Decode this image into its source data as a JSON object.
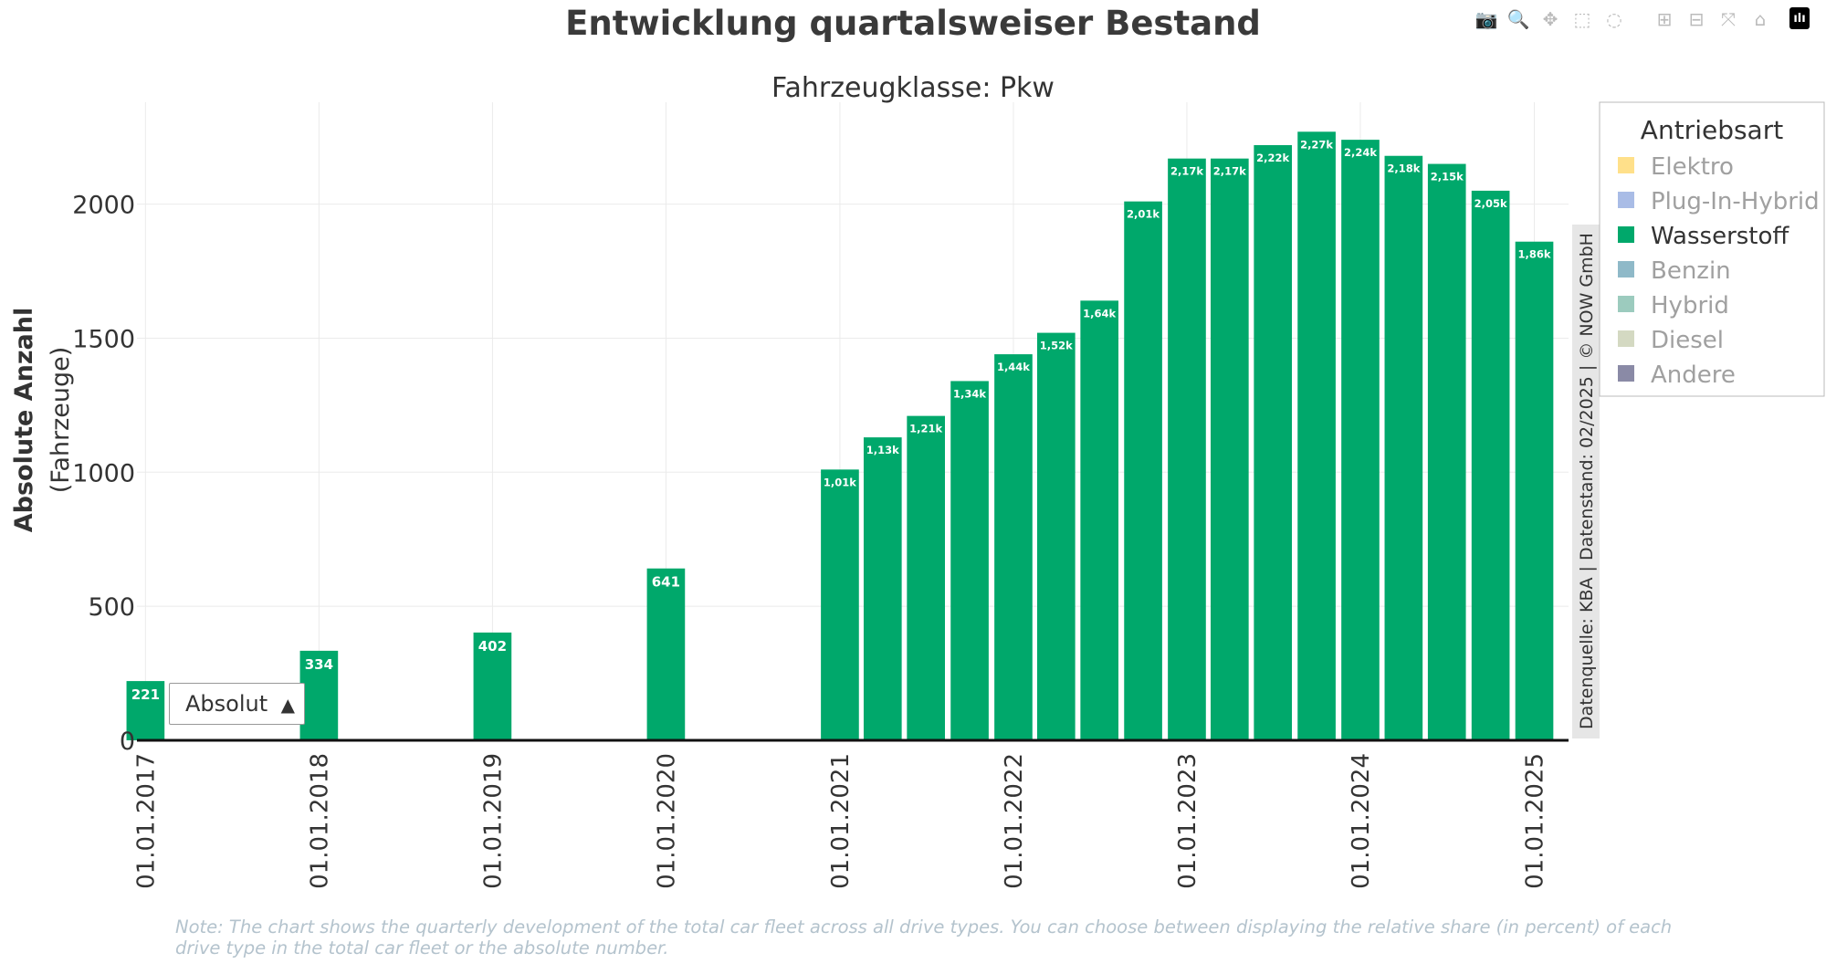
{
  "page": {
    "title": "Entwicklung quartalsweiser Bestand",
    "subtitle": "Fahrzeugklasse: Pkw",
    "source_note": "Datenquelle: KBA | Datenstand: 02/2025 | © NOW GmbH",
    "footnote": "Note: The chart shows the quarterly development of the total car fleet across all drive types. You can choose between displaying the relative share (in percent) of each drive type in the total car fleet or the absolute number."
  },
  "dropdown": {
    "selected": "Absolut",
    "arrow": "▲"
  },
  "toolbar": [
    {
      "name": "camera-icon",
      "glyph": "📷"
    },
    {
      "name": "zoom-icon",
      "glyph": "🔍"
    },
    {
      "name": "pan-icon",
      "glyph": "✥"
    },
    {
      "name": "box-select-icon",
      "glyph": "⬚"
    },
    {
      "name": "lasso-select-icon",
      "glyph": "◌"
    },
    {
      "name": "zoom-in-icon",
      "glyph": "⊞"
    },
    {
      "name": "zoom-out-icon",
      "glyph": "⊟"
    },
    {
      "name": "autoscale-icon",
      "glyph": "⤧"
    },
    {
      "name": "reset-axes-icon",
      "glyph": "⌂"
    },
    {
      "name": "plotly-logo-icon",
      "glyph": "ılı"
    }
  ],
  "colors": {
    "bar": "#00a86b",
    "axis": "#111111",
    "grid": "#ebebeb",
    "text": "#444444",
    "legend_inactive_text": "#a0a0a0",
    "legend_active_text": "#333333"
  },
  "chart_data": {
    "type": "bar",
    "title": "Entwicklung quartalsweiser Bestand",
    "subtitle": "Fahrzeugklasse: Pkw",
    "ylabel": "Absolute Anzahl",
    "ylabel_unit": "(Fahrzeuge)",
    "xlabel": "",
    "ylim": [
      0,
      2380
    ],
    "yticks": [
      0,
      500,
      1000,
      1500,
      2000
    ],
    "grid": true,
    "x_range": [
      "2016-12-14",
      "2025-03-14"
    ],
    "xtick_dates": [
      "2017-01-01",
      "2018-01-01",
      "2019-01-01",
      "2020-01-01",
      "2021-01-01",
      "2022-01-01",
      "2023-01-01",
      "2024-01-01",
      "2025-01-01"
    ],
    "xtick_labels": [
      "01.01.2017",
      "01.01.2018",
      "01.01.2019",
      "01.01.2020",
      "01.01.2021",
      "01.01.2022",
      "01.01.2023",
      "01.01.2024",
      "01.01.2025"
    ],
    "legend_title": "Antriebsart",
    "legend_position": "top-right",
    "legend": [
      {
        "name": "Elektro",
        "color": "#ffe08a",
        "active": false
      },
      {
        "name": "Plug-In-Hybrid",
        "color": "#a9bce6",
        "active": false
      },
      {
        "name": "Wasserstoff",
        "color": "#00a86b",
        "active": true
      },
      {
        "name": "Benzin",
        "color": "#8fb9c8",
        "active": false
      },
      {
        "name": "Hybrid",
        "color": "#9ccbbe",
        "active": false
      },
      {
        "name": "Diesel",
        "color": "#d4d9c2",
        "active": false
      },
      {
        "name": "Andere",
        "color": "#8a8aa6",
        "active": false
      }
    ],
    "series": [
      {
        "name": "Wasserstoff",
        "x": [
          "2017-01-01",
          "2018-01-01",
          "2019-01-01",
          "2020-01-01",
          "2021-01-01",
          "2021-04-01",
          "2021-07-01",
          "2021-10-01",
          "2022-01-01",
          "2022-04-01",
          "2022-07-01",
          "2022-10-01",
          "2023-01-01",
          "2023-04-01",
          "2023-07-01",
          "2023-10-01",
          "2024-01-01",
          "2024-04-01",
          "2024-07-01",
          "2024-10-01",
          "2025-01-01"
        ],
        "values": [
          221,
          334,
          402,
          641,
          1010,
          1130,
          1210,
          1340,
          1440,
          1520,
          1640,
          2010,
          2170,
          2170,
          2220,
          2270,
          2240,
          2180,
          2150,
          2050,
          1860
        ],
        "labels": [
          "221",
          "334",
          "402",
          "641",
          "1,01k",
          "1,13k",
          "1,21k",
          "1,34k",
          "1,44k",
          "1,52k",
          "1,64k",
          "2,01k",
          "2,17k",
          "2,17k",
          "2,22k",
          "2,27k",
          "2,24k",
          "2,18k",
          "2,15k",
          "2,05k",
          "1,86k"
        ]
      }
    ]
  }
}
